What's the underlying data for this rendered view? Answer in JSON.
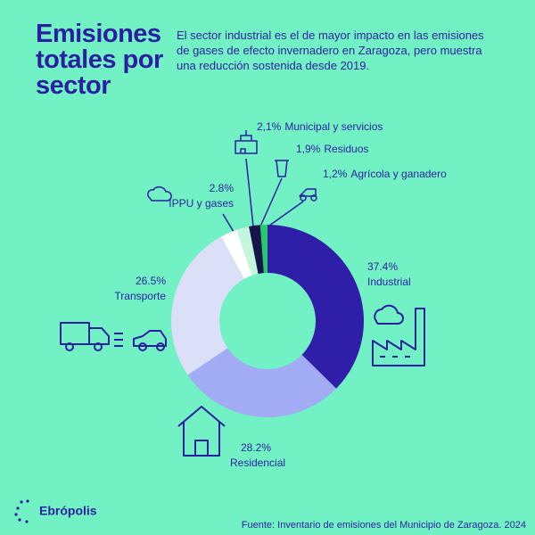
{
  "chart_data": {
    "type": "donut",
    "title": "Emisiones totales por sector",
    "subtitle": "El sector industrial es el de  mayor impacto en las emisiones de gases de efecto invernadero en Zaragoza, pero muestra una reducción sostenida desde 2019.",
    "categories": [
      "Industrial",
      "Residencial",
      "Transporte",
      "IPPU y gases",
      "Municipal y servicios",
      "Residuos",
      "Agrícola y ganadero"
    ],
    "values": [
      37.4,
      28.2,
      26.5,
      2.8,
      2.1,
      1.9,
      1.2
    ],
    "value_labels": [
      "37.4%",
      "28.2%",
      "26.5%",
      "2.8%",
      "2,1%",
      "1,9%",
      "1,2%"
    ],
    "colors": [
      "#2f1fa8",
      "#a2acf4",
      "#dcdff8",
      "#ffffff",
      "#c4f5dd",
      "#16154a",
      "#27c86e"
    ],
    "source": "Fuente: Inventario de emisiones del  Municipio de Zaragoza.  2024"
  },
  "logo": "Ebrópolis"
}
